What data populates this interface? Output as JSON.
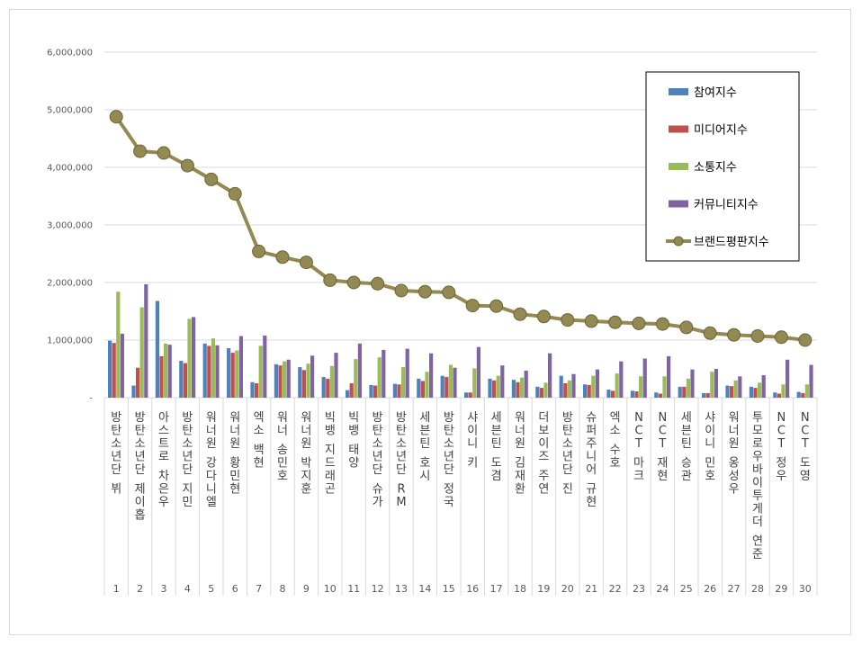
{
  "chart_data": {
    "type": "bar",
    "ylim": [
      0,
      6000000
    ],
    "yticks": [
      "-",
      "1,000,000",
      "2,000,000",
      "3,000,000",
      "4,000,000",
      "5,000,000",
      "6,000,000"
    ],
    "ytick_values": [
      0,
      1000000,
      2000000,
      3000000,
      4000000,
      5000000,
      6000000
    ],
    "grid": true,
    "legend_position": "top-right",
    "ranks": [
      "1",
      "2",
      "3",
      "4",
      "5",
      "6",
      "7",
      "8",
      "9",
      "10",
      "11",
      "12",
      "13",
      "14",
      "15",
      "16",
      "17",
      "18",
      "19",
      "20",
      "21",
      "22",
      "23",
      "24",
      "25",
      "26",
      "27",
      "28",
      "29",
      "30"
    ],
    "categories": [
      "방탄소년단 뷔",
      "방탄소년단 제이홉",
      "아스트로 차은우",
      "방탄소년단 지민",
      "워너원 강다니엘",
      "워너원 황민현",
      "엑소 백현",
      "워너 송민호",
      "워너원 박지훈",
      "빅뱅 지드래곤",
      "빅뱅 태양",
      "방탄소년단 슈가",
      "방탄소년단 RM",
      "세븐틴 호시",
      "방탄소년단 정국",
      "샤이니 키",
      "세븐틴 도겸",
      "워너원 김재환",
      "더보이즈 주연",
      "방탄소년단 진",
      "슈퍼주니어 규현",
      "엑소 수호",
      "NCT 마크",
      "NCT 재현",
      "세븐틴 승관",
      "샤이니 민호",
      "워너원 옹성우",
      "투모로우바이투게더 연준",
      "NCT 정우",
      "NCT 도영"
    ],
    "colors": {
      "participation": "#4f81bd",
      "media": "#c0504d",
      "communication": "#9bbb59",
      "community": "#8064a2",
      "brand": "#938953"
    },
    "series": [
      {
        "name": "참여지수",
        "key": "participation",
        "values": [
          990000,
          210000,
          1680000,
          640000,
          940000,
          860000,
          270000,
          580000,
          530000,
          360000,
          130000,
          220000,
          240000,
          330000,
          380000,
          90000,
          330000,
          310000,
          190000,
          380000,
          230000,
          140000,
          120000,
          90000,
          190000,
          80000,
          210000,
          190000,
          90000,
          100000
        ]
      },
      {
        "name": "미디어지수",
        "key": "media",
        "values": [
          950000,
          520000,
          720000,
          600000,
          900000,
          780000,
          250000,
          560000,
          480000,
          330000,
          250000,
          210000,
          230000,
          290000,
          360000,
          90000,
          300000,
          270000,
          170000,
          250000,
          220000,
          120000,
          110000,
          70000,
          190000,
          80000,
          200000,
          170000,
          70000,
          80000
        ]
      },
      {
        "name": "소통지수",
        "key": "communication",
        "values": [
          1840000,
          1570000,
          940000,
          1370000,
          1030000,
          820000,
          900000,
          630000,
          590000,
          550000,
          670000,
          700000,
          530000,
          450000,
          570000,
          510000,
          380000,
          350000,
          260000,
          300000,
          380000,
          420000,
          370000,
          370000,
          330000,
          450000,
          300000,
          260000,
          230000,
          230000
        ]
      },
      {
        "name": "커뮤니티지수",
        "key": "community",
        "values": [
          1110000,
          1970000,
          920000,
          1400000,
          910000,
          1070000,
          1080000,
          660000,
          730000,
          780000,
          940000,
          830000,
          850000,
          770000,
          520000,
          880000,
          560000,
          470000,
          770000,
          410000,
          490000,
          630000,
          680000,
          720000,
          490000,
          500000,
          370000,
          390000,
          660000,
          570000
        ]
      },
      {
        "name": "브랜드평판지수",
        "key": "brand",
        "values": [
          4880000,
          4280000,
          4250000,
          4030000,
          3790000,
          3540000,
          2540000,
          2440000,
          2350000,
          2040000,
          2000000,
          1980000,
          1860000,
          1840000,
          1830000,
          1600000,
          1590000,
          1450000,
          1410000,
          1350000,
          1330000,
          1310000,
          1290000,
          1280000,
          1220000,
          1120000,
          1090000,
          1070000,
          1050000,
          1000000
        ]
      }
    ]
  }
}
